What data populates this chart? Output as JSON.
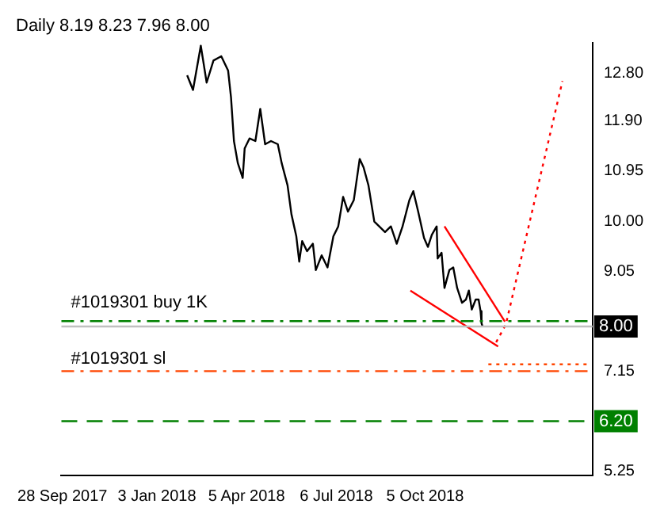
{
  "chart_data": {
    "type": "line",
    "title": "Daily 8.19 8.23 7.96 8.00",
    "legend": false,
    "grid": false,
    "marker": "none",
    "xlim": [
      "2017-09-27",
      "2019-03-26"
    ],
    "xticks": [
      {
        "value": "2017-09-28",
        "label": "28 Sep 2017"
      },
      {
        "value": "2018-01-03",
        "label": "3 Jan 2018"
      },
      {
        "value": "2018-04-05",
        "label": "5 Apr 2018"
      },
      {
        "value": "2018-07-06",
        "label": "6 Jul 2018"
      },
      {
        "value": "2018-10-05",
        "label": "5 Oct 2018"
      }
    ],
    "ylim": [
      5.17,
      13.38
    ],
    "yticks": [
      5.25,
      7.15,
      9.05,
      {
        "value": 10.0,
        "label": "10.00"
      },
      10.95,
      {
        "value": 11.9,
        "label": "11.90"
      },
      {
        "value": 12.8,
        "label": "12.80"
      }
    ],
    "series": [
      {
        "color": "#000000",
        "line_style": "solid",
        "x": [
          "2018-02-03",
          "2018-02-09",
          "2018-02-17",
          "2018-02-23",
          "2018-03-02",
          "2018-03-10",
          "2018-03-17",
          "2018-03-20",
          "2018-03-23",
          "2018-03-27",
          "2018-04-01",
          "2018-04-03",
          "2018-04-08",
          "2018-04-14",
          "2018-04-19",
          "2018-04-24",
          "2018-04-30",
          "2018-05-07",
          "2018-05-11",
          "2018-05-17",
          "2018-05-21",
          "2018-05-26",
          "2018-05-29",
          "2018-06-01",
          "2018-06-06",
          "2018-06-12",
          "2018-06-15",
          "2018-06-21",
          "2018-06-27",
          "2018-07-03",
          "2018-07-08",
          "2018-07-13",
          "2018-07-18",
          "2018-07-24",
          "2018-07-30",
          "2018-08-03",
          "2018-08-08",
          "2018-08-14",
          "2018-08-19",
          "2018-08-25",
          "2018-08-31",
          "2018-09-06",
          "2018-09-12",
          "2018-09-19",
          "2018-09-23",
          "2018-09-28",
          "2018-10-04",
          "2018-10-08",
          "2018-10-12",
          "2018-10-17",
          "2018-10-18",
          "2018-10-22",
          "2018-10-25",
          "2018-10-30",
          "2018-11-03",
          "2018-11-07",
          "2018-11-12",
          "2018-11-16",
          "2018-11-19",
          "2018-11-22",
          "2018-11-26",
          "2018-11-29",
          "2018-12-01",
          "2018-12-02",
          "2018-12-03"
        ],
        "values": [
          12.77,
          12.49,
          13.33,
          12.63,
          13.05,
          13.13,
          12.86,
          12.35,
          11.52,
          11.1,
          10.82,
          11.38,
          11.57,
          11.52,
          12.13,
          11.46,
          11.52,
          11.46,
          11.1,
          10.68,
          10.13,
          9.71,
          9.23,
          9.62,
          9.43,
          9.57,
          9.07,
          9.35,
          9.12,
          9.71,
          9.9,
          10.46,
          10.18,
          10.4,
          11.18,
          11.02,
          10.68,
          9.99,
          9.9,
          9.79,
          9.9,
          9.57,
          9.9,
          10.4,
          10.57,
          10.18,
          9.68,
          9.51,
          9.74,
          9.9,
          9.29,
          9.4,
          8.73,
          9.07,
          9.12,
          8.73,
          8.45,
          8.51,
          8.68,
          8.32,
          8.51,
          8.51,
          8.29,
          8.06,
          8.0
        ]
      },
      {
        "color": "#ff0000",
        "line_style": "solid",
        "x": [
          "2018-10-25",
          "2018-12-26"
        ],
        "values": [
          9.9,
          8.09
        ]
      },
      {
        "color": "#ff0000",
        "line_style": "solid",
        "x": [
          "2018-09-20",
          "2018-12-19"
        ],
        "values": [
          8.68,
          7.62
        ]
      },
      {
        "color": "#ff0000",
        "line_style": "dotted",
        "x": [
          "2018-12-17",
          "2018-12-27",
          "2019-02-23"
        ],
        "values": [
          7.7,
          8.04,
          12.66
        ]
      },
      {
        "color": "#ff4500",
        "line_style": "dotted",
        "x": [
          "2018-12-09",
          "2019-03-24"
        ],
        "values": [
          7.28,
          7.28
        ]
      }
    ],
    "ref_lines": [
      {
        "axis": "y",
        "value": 8.1,
        "label": "#1019301 buy 1K",
        "color": "#008000",
        "line_style": "dashdot"
      },
      {
        "axis": "y",
        "value": 8.0,
        "label": "8.00",
        "color": "#c0c0c0",
        "line_style": "solid"
      },
      {
        "axis": "y",
        "value": 7.15,
        "label": "#1019301 sl",
        "color": "#ff4500",
        "line_style": "dashdot"
      },
      {
        "axis": "y",
        "value": 6.2,
        "label": "6.20",
        "color": "#008000",
        "line_style": "dashed"
      }
    ]
  }
}
